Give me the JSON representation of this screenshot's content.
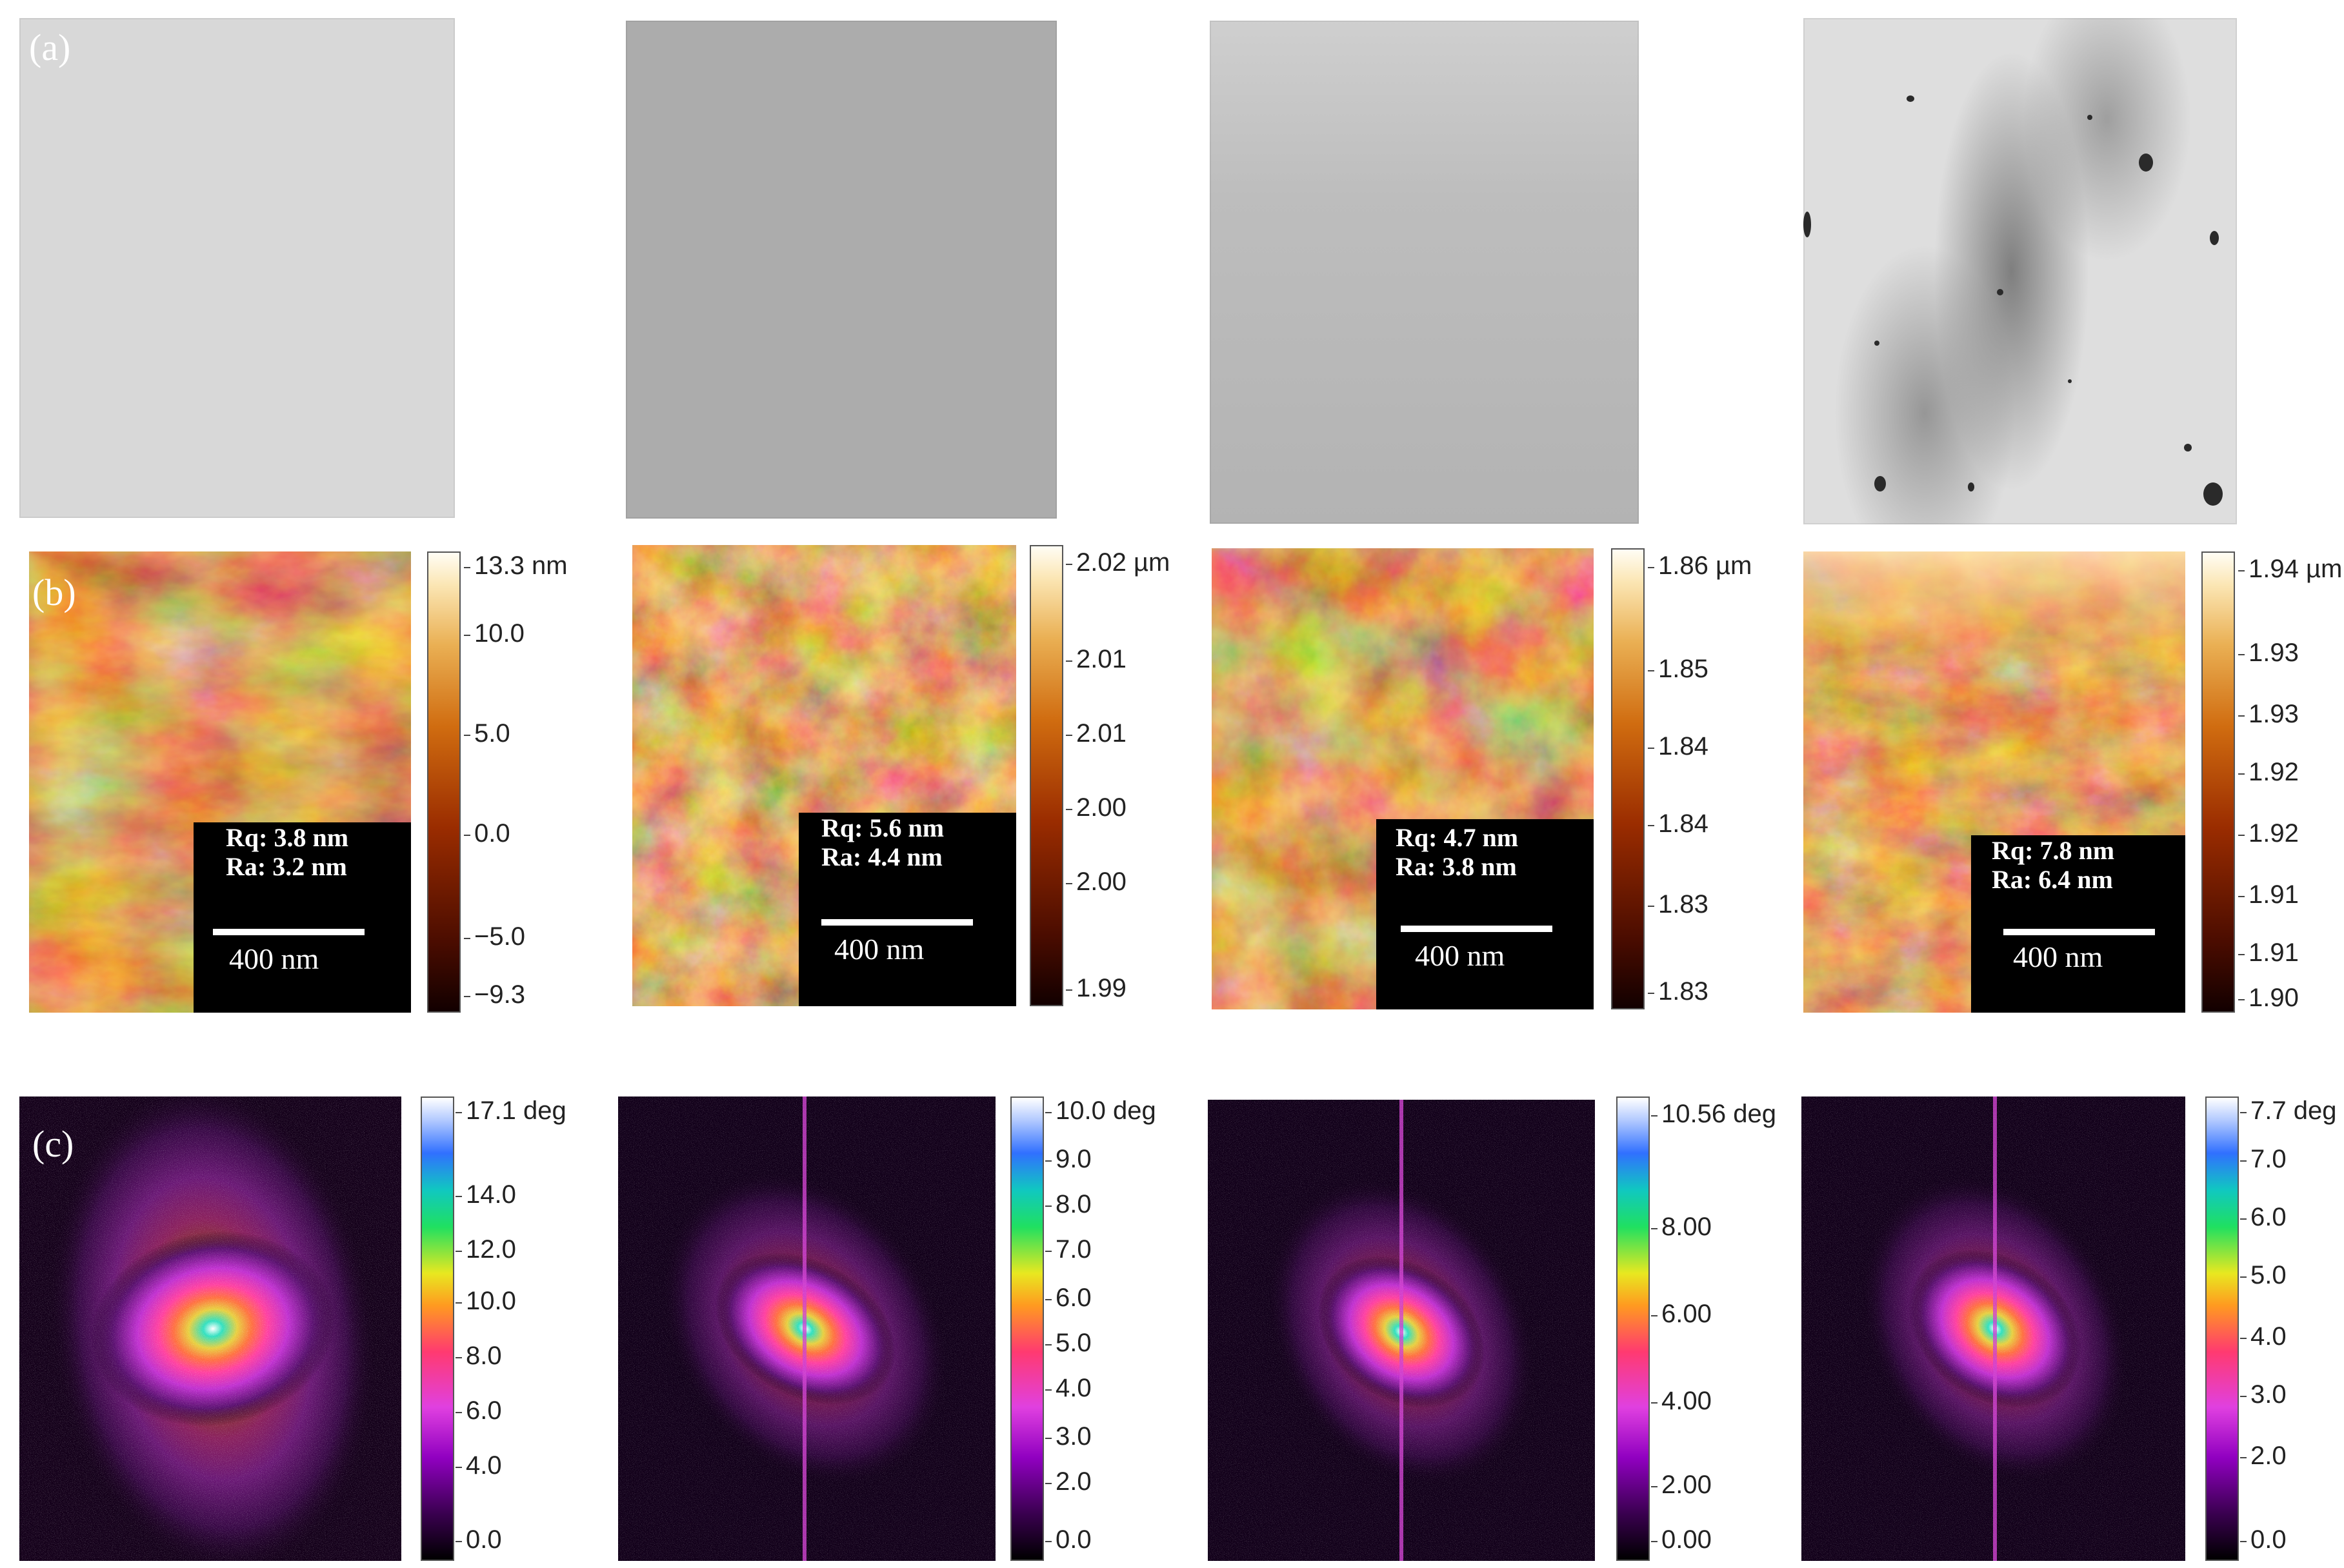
{
  "labels": {
    "a": "(a)",
    "b": "(b)",
    "c": "(c)"
  },
  "afm": [
    {
      "rq": "Rq: 3.8 nm",
      "ra": "Ra: 3.2 nm",
      "scale": "400 nm",
      "ticks": [
        "13.3 nm",
        "10.0",
        "5.0",
        "0.0",
        "−5.0",
        "−9.3"
      ]
    },
    {
      "rq": "Rq: 5.6 nm",
      "ra": "Ra: 4.4 nm",
      "scale": "400 nm",
      "ticks": [
        "2.02 µm",
        "2.01",
        "2.01",
        "2.00",
        "2.00",
        "1.99"
      ]
    },
    {
      "rq": "Rq: 4.7 nm",
      "ra": "Ra: 3.8 nm",
      "scale": "400 nm",
      "ticks": [
        "1.86 µm",
        "1.85",
        "1.84",
        "1.84",
        "1.83",
        "1.83"
      ]
    },
    {
      "rq": "Rq: 7.8 nm",
      "ra": "Ra: 6.4 nm",
      "scale": "400 nm",
      "ticks": [
        "1.94 µm",
        "1.93",
        "1.93",
        "1.92",
        "1.92",
        "1.91",
        "1.91",
        "1.90"
      ]
    }
  ],
  "fft": [
    {
      "ticks": [
        "17.1 deg",
        "14.0",
        "12.0",
        "10.0",
        "8.0",
        "6.0",
        "4.0",
        "0.0"
      ]
    },
    {
      "ticks": [
        "10.0 deg",
        "9.0",
        "8.0",
        "7.0",
        "6.0",
        "5.0",
        "4.0",
        "3.0",
        "2.0",
        "0.0"
      ]
    },
    {
      "ticks": [
        "10.56 deg",
        "8.00",
        "6.00",
        "4.00",
        "2.00",
        "0.00"
      ]
    },
    {
      "ticks": [
        "7.7 deg",
        "7.0",
        "6.0",
        "5.0",
        "4.0",
        "3.0",
        "2.0",
        "0.0"
      ]
    }
  ]
}
